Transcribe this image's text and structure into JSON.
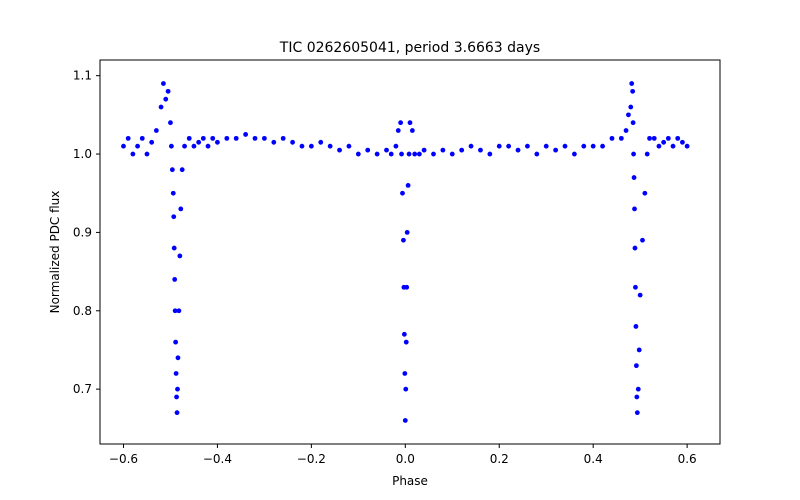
{
  "chart_data": {
    "type": "scatter",
    "title": "TIC 0262605041, period 3.6663 days",
    "xlabel": "Phase",
    "ylabel": "Normalized PDC flux",
    "xlim": [
      -0.65,
      0.67
    ],
    "ylim": [
      0.63,
      1.12
    ],
    "xticks": [
      -0.6,
      -0.4,
      -0.2,
      0.0,
      0.2,
      0.4,
      0.6
    ],
    "xtick_labels": [
      "−0.6",
      "−0.4",
      "−0.2",
      "0.0",
      "0.2",
      "0.4",
      "0.6"
    ],
    "yticks": [
      0.7,
      0.8,
      0.9,
      1.0,
      1.1
    ],
    "ytick_labels": [
      "0.7",
      "0.8",
      "0.9",
      "1.0",
      "1.1"
    ],
    "grid": false,
    "marker_color": "#0000ff",
    "series": [
      {
        "x": [
          -0.6,
          -0.59,
          -0.58,
          -0.57,
          -0.56,
          -0.55,
          -0.54,
          -0.53,
          -0.52,
          -0.515,
          -0.51,
          -0.505,
          -0.5,
          -0.498,
          -0.496,
          -0.494,
          -0.493,
          -0.492,
          -0.491,
          -0.49,
          -0.489,
          -0.488,
          -0.487,
          -0.486,
          -0.485,
          -0.484,
          -0.482,
          -0.48,
          -0.478,
          -0.475,
          -0.47,
          -0.46,
          -0.45,
          -0.44,
          -0.43,
          -0.42,
          -0.41,
          -0.4,
          -0.38,
          -0.36,
          -0.34,
          -0.32,
          -0.3,
          -0.28,
          -0.26,
          -0.24,
          -0.22,
          -0.2,
          -0.18,
          -0.16,
          -0.14,
          -0.12,
          -0.1,
          -0.08,
          -0.06,
          -0.04,
          -0.03,
          -0.02,
          -0.015,
          -0.01,
          -0.008,
          -0.006,
          -0.004,
          -0.003,
          -0.002,
          -0.001,
          0.0,
          0.001,
          0.002,
          0.003,
          0.004,
          0.006,
          0.008,
          0.01,
          0.015,
          0.02,
          0.03,
          0.04,
          0.06,
          0.08,
          0.1,
          0.12,
          0.14,
          0.16,
          0.18,
          0.2,
          0.22,
          0.24,
          0.26,
          0.28,
          0.3,
          0.32,
          0.34,
          0.36,
          0.38,
          0.4,
          0.42,
          0.44,
          0.46,
          0.47,
          0.475,
          0.48,
          0.482,
          0.484,
          0.485,
          0.486,
          0.487,
          0.488,
          0.489,
          0.49,
          0.491,
          0.492,
          0.493,
          0.494,
          0.496,
          0.498,
          0.5,
          0.505,
          0.51,
          0.515,
          0.52,
          0.53,
          0.54,
          0.55,
          0.56,
          0.57,
          0.58,
          0.59,
          0.6
        ],
        "y": [
          1.01,
          1.02,
          1.0,
          1.01,
          1.02,
          1.0,
          1.015,
          1.03,
          1.06,
          1.09,
          1.07,
          1.08,
          1.04,
          1.01,
          0.98,
          0.95,
          0.92,
          0.88,
          0.84,
          0.8,
          0.76,
          0.72,
          0.69,
          0.67,
          0.7,
          0.74,
          0.8,
          0.87,
          0.93,
          0.98,
          1.01,
          1.02,
          1.01,
          1.015,
          1.02,
          1.01,
          1.02,
          1.015,
          1.02,
          1.02,
          1.025,
          1.02,
          1.02,
          1.015,
          1.02,
          1.015,
          1.01,
          1.01,
          1.015,
          1.01,
          1.005,
          1.01,
          1.0,
          1.005,
          1.0,
          1.005,
          1.0,
          1.01,
          1.03,
          1.04,
          1.0,
          0.95,
          0.89,
          0.83,
          0.77,
          0.72,
          0.66,
          0.7,
          0.76,
          0.83,
          0.9,
          0.96,
          1.0,
          1.04,
          1.03,
          1.0,
          1.0,
          1.005,
          1.0,
          1.005,
          1.0,
          1.005,
          1.01,
          1.005,
          1.0,
          1.01,
          1.01,
          1.005,
          1.01,
          1.0,
          1.01,
          1.005,
          1.01,
          1.0,
          1.01,
          1.01,
          1.01,
          1.02,
          1.02,
          1.03,
          1.05,
          1.06,
          1.09,
          1.08,
          1.04,
          1.0,
          0.97,
          0.93,
          0.88,
          0.83,
          0.78,
          0.73,
          0.69,
          0.67,
          0.7,
          0.75,
          0.82,
          0.89,
          0.95,
          1.0,
          1.02,
          1.02,
          1.01,
          1.015,
          1.02,
          1.01,
          1.02,
          1.015,
          1.01
        ]
      }
    ]
  }
}
